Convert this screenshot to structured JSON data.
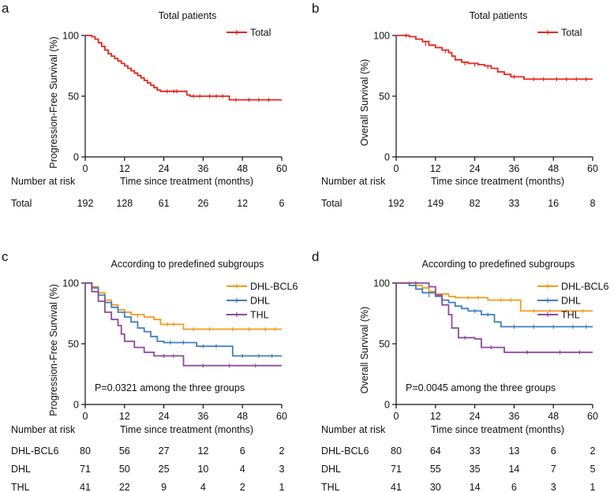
{
  "colors": {
    "total": "#e8251c",
    "dhl_bcl6": "#f39a1e",
    "dhl": "#3f7fc0",
    "thl": "#8e4a9a",
    "axis": "#111111"
  },
  "chart_data": [
    {
      "letter": "a",
      "type": "line",
      "title": "Total patients",
      "ylabel": "Progression-Free Survival (%)",
      "xlabel": "Time since treatment (months)",
      "xlim": [
        0,
        60
      ],
      "ylim": [
        0,
        100
      ],
      "xticks": [
        "0",
        "12",
        "24",
        "36",
        "48",
        "60"
      ],
      "yticks": [
        "0",
        "50",
        "100"
      ],
      "series": [
        {
          "name": "Total",
          "color_key": "total",
          "steps": [
            [
              0,
              100
            ],
            [
              2,
              99
            ],
            [
              3,
              97
            ],
            [
              4,
              94
            ],
            [
              5,
              91
            ],
            [
              6,
              88
            ],
            [
              7,
              85
            ],
            [
              8,
              83
            ],
            [
              9,
              81
            ],
            [
              10,
              79
            ],
            [
              11,
              77
            ],
            [
              12,
              75
            ],
            [
              13,
              73
            ],
            [
              14,
              71
            ],
            [
              15,
              69
            ],
            [
              16,
              67
            ],
            [
              17,
              65
            ],
            [
              18,
              63
            ],
            [
              19,
              61
            ],
            [
              20,
              59
            ],
            [
              21,
              57
            ],
            [
              22,
              55
            ],
            [
              23,
              54
            ],
            [
              26,
              54
            ],
            [
              29,
              54
            ],
            [
              31,
              51
            ],
            [
              32,
              50
            ],
            [
              36,
              50
            ],
            [
              44,
              47
            ],
            [
              60,
              47
            ]
          ],
          "censor": [
            [
              25,
              54
            ],
            [
              27,
              54
            ],
            [
              28,
              54
            ],
            [
              33,
              50
            ],
            [
              35,
              50
            ],
            [
              38,
              50
            ],
            [
              40,
              50
            ],
            [
              42,
              50
            ],
            [
              46,
              47
            ],
            [
              50,
              47
            ],
            [
              53,
              47
            ],
            [
              56,
              47
            ]
          ]
        }
      ],
      "legend": {
        "position": "top-right"
      },
      "annotation": "",
      "risk_table": {
        "header": "Number at risk",
        "rows": [
          {
            "label": "Total",
            "values": [
              "192",
              "128",
              "61",
              "26",
              "12",
              "6"
            ]
          }
        ]
      }
    },
    {
      "letter": "b",
      "type": "line",
      "title": "Total patients",
      "ylabel": "Overall Survival (%)",
      "xlabel": "Time since treatment (months)",
      "xlim": [
        0,
        60
      ],
      "ylim": [
        0,
        100
      ],
      "xticks": [
        "0",
        "12",
        "24",
        "36",
        "48",
        "60"
      ],
      "yticks": [
        "0",
        "50",
        "100"
      ],
      "series": [
        {
          "name": "Total",
          "color_key": "total",
          "steps": [
            [
              0,
              100
            ],
            [
              4,
              99
            ],
            [
              6,
              97
            ],
            [
              8,
              95
            ],
            [
              10,
              92
            ],
            [
              12,
              90
            ],
            [
              14,
              88
            ],
            [
              16,
              86
            ],
            [
              17,
              83
            ],
            [
              18,
              80
            ],
            [
              20,
              78
            ],
            [
              22,
              77
            ],
            [
              25,
              76
            ],
            [
              27,
              75
            ],
            [
              29,
              73
            ],
            [
              31,
              70
            ],
            [
              33,
              68
            ],
            [
              35,
              66
            ],
            [
              38,
              66
            ],
            [
              39,
              64
            ],
            [
              60,
              64
            ]
          ],
          "censor": [
            [
              3,
              100
            ],
            [
              9,
              93
            ],
            [
              15,
              87
            ],
            [
              21,
              77
            ],
            [
              24,
              76
            ],
            [
              28,
              74
            ],
            [
              36,
              66
            ],
            [
              42,
              64
            ],
            [
              45,
              64
            ],
            [
              49,
              64
            ],
            [
              52,
              64
            ],
            [
              55,
              64
            ],
            [
              58,
              64
            ]
          ]
        }
      ],
      "legend": {
        "position": "top-right"
      },
      "annotation": "",
      "risk_table": {
        "header": "Number at risk",
        "rows": [
          {
            "label": "Total",
            "values": [
              "192",
              "149",
              "82",
              "33",
              "16",
              "8"
            ]
          }
        ]
      }
    },
    {
      "letter": "c",
      "type": "line",
      "title": "According to predefined subgroups",
      "ylabel": "Progression-Free Survival (%)",
      "xlabel": "Time since treatment (months)",
      "xlim": [
        0,
        60
      ],
      "ylim": [
        0,
        100
      ],
      "xticks": [
        "0",
        "12",
        "24",
        "36",
        "48",
        "60"
      ],
      "yticks": [
        "0",
        "50",
        "100"
      ],
      "series": [
        {
          "name": "DHL-BCL6",
          "color_key": "dhl_bcl6",
          "steps": [
            [
              0,
              100
            ],
            [
              2,
              97
            ],
            [
              4,
              92
            ],
            [
              6,
              86
            ],
            [
              8,
              82
            ],
            [
              10,
              78
            ],
            [
              12,
              76
            ],
            [
              14,
              74
            ],
            [
              18,
              72
            ],
            [
              21,
              70
            ],
            [
              23,
              66
            ],
            [
              28,
              66
            ],
            [
              30,
              62
            ],
            [
              60,
              62
            ]
          ],
          "censor": [
            [
              16,
              73
            ],
            [
              25,
              66
            ],
            [
              27,
              66
            ],
            [
              33,
              62
            ],
            [
              38,
              62
            ],
            [
              45,
              62
            ],
            [
              50,
              62
            ],
            [
              55,
              62
            ],
            [
              58,
              62
            ]
          ]
        },
        {
          "name": "DHL",
          "color_key": "dhl",
          "steps": [
            [
              0,
              100
            ],
            [
              2,
              96
            ],
            [
              4,
              90
            ],
            [
              6,
              84
            ],
            [
              8,
              80
            ],
            [
              10,
              76
            ],
            [
              12,
              72
            ],
            [
              14,
              68
            ],
            [
              16,
              63
            ],
            [
              18,
              60
            ],
            [
              20,
              56
            ],
            [
              22,
              52
            ],
            [
              24,
              51
            ],
            [
              34,
              48
            ],
            [
              45,
              40
            ],
            [
              60,
              40
            ]
          ],
          "censor": [
            [
              26,
              51
            ],
            [
              30,
              51
            ],
            [
              36,
              48
            ],
            [
              40,
              48
            ],
            [
              48,
              40
            ],
            [
              53,
              40
            ],
            [
              57,
              40
            ]
          ]
        },
        {
          "name": "THL",
          "color_key": "thl",
          "steps": [
            [
              0,
              100
            ],
            [
              2,
              93
            ],
            [
              4,
              85
            ],
            [
              6,
              76
            ],
            [
              8,
              70
            ],
            [
              10,
              65
            ],
            [
              11,
              58
            ],
            [
              12,
              52
            ],
            [
              15,
              47
            ],
            [
              18,
              43
            ],
            [
              21,
              40
            ],
            [
              30,
              32
            ],
            [
              60,
              32
            ]
          ],
          "censor": [
            [
              24,
              40
            ],
            [
              27,
              40
            ],
            [
              36,
              32
            ],
            [
              44,
              32
            ],
            [
              52,
              32
            ]
          ]
        }
      ],
      "legend": {
        "position": "top-right"
      },
      "annotation": "P=0.0321 among the three groups",
      "risk_table": {
        "header": "Number at risk",
        "rows": [
          {
            "label": "DHL-BCL6",
            "values": [
              "80",
              "56",
              "27",
              "12",
              "6",
              "2"
            ]
          },
          {
            "label": "DHL",
            "values": [
              "71",
              "50",
              "25",
              "10",
              "4",
              "3"
            ]
          },
          {
            "label": "THL",
            "values": [
              "41",
              "22",
              "9",
              "4",
              "2",
              "1"
            ]
          }
        ]
      }
    },
    {
      "letter": "d",
      "type": "line",
      "title": "According to predefined subgroups",
      "ylabel": "Overall Survival (%)",
      "xlabel": "Time since treatment (months)",
      "xlim": [
        0,
        60
      ],
      "ylim": [
        0,
        100
      ],
      "xticks": [
        "0",
        "12",
        "24",
        "36",
        "48",
        "60"
      ],
      "yticks": [
        "0",
        "50",
        "100"
      ],
      "series": [
        {
          "name": "DHL-BCL6",
          "color_key": "dhl_bcl6",
          "steps": [
            [
              0,
              100
            ],
            [
              6,
              98
            ],
            [
              8,
              96
            ],
            [
              10,
              93
            ],
            [
              12,
              91
            ],
            [
              16,
              89
            ],
            [
              18,
              88
            ],
            [
              28,
              86
            ],
            [
              38,
              77
            ],
            [
              60,
              77
            ]
          ],
          "censor": [
            [
              4,
              100
            ],
            [
              14,
              90
            ],
            [
              22,
              88
            ],
            [
              25,
              88
            ],
            [
              32,
              86
            ],
            [
              35,
              86
            ],
            [
              42,
              77
            ],
            [
              47,
              77
            ],
            [
              52,
              77
            ],
            [
              57,
              77
            ]
          ]
        },
        {
          "name": "DHL",
          "color_key": "dhl",
          "steps": [
            [
              0,
              100
            ],
            [
              4,
              98
            ],
            [
              6,
              95
            ],
            [
              8,
              92
            ],
            [
              12,
              89
            ],
            [
              14,
              86
            ],
            [
              16,
              84
            ],
            [
              18,
              81
            ],
            [
              20,
              79
            ],
            [
              22,
              77
            ],
            [
              26,
              74
            ],
            [
              30,
              68
            ],
            [
              32,
              64
            ],
            [
              60,
              64
            ]
          ],
          "censor": [
            [
              10,
              90
            ],
            [
              24,
              77
            ],
            [
              28,
              74
            ],
            [
              36,
              64
            ],
            [
              42,
              64
            ],
            [
              48,
              64
            ],
            [
              54,
              64
            ],
            [
              58,
              64
            ]
          ]
        },
        {
          "name": "THL",
          "color_key": "thl",
          "steps": [
            [
              0,
              100
            ],
            [
              10,
              97
            ],
            [
              12,
              90
            ],
            [
              14,
              82
            ],
            [
              16,
              74
            ],
            [
              17,
              63
            ],
            [
              19,
              55
            ],
            [
              24,
              54
            ],
            [
              26,
              47
            ],
            [
              33,
              43
            ],
            [
              60,
              43
            ]
          ],
          "censor": [
            [
              6,
              100
            ],
            [
              21,
              55
            ],
            [
              29,
              47
            ],
            [
              40,
              43
            ],
            [
              50,
              43
            ],
            [
              56,
              43
            ]
          ]
        }
      ],
      "legend": {
        "position": "top-right"
      },
      "annotation": "P=0.0045 among the three groups",
      "risk_table": {
        "header": "Number at risk",
        "rows": [
          {
            "label": "DHL-BCL6",
            "values": [
              "80",
              "64",
              "33",
              "13",
              "6",
              "2"
            ]
          },
          {
            "label": "DHL",
            "values": [
              "71",
              "55",
              "35",
              "14",
              "7",
              "5"
            ]
          },
          {
            "label": "THL",
            "values": [
              "41",
              "30",
              "14",
              "6",
              "3",
              "1"
            ]
          }
        ]
      }
    }
  ]
}
